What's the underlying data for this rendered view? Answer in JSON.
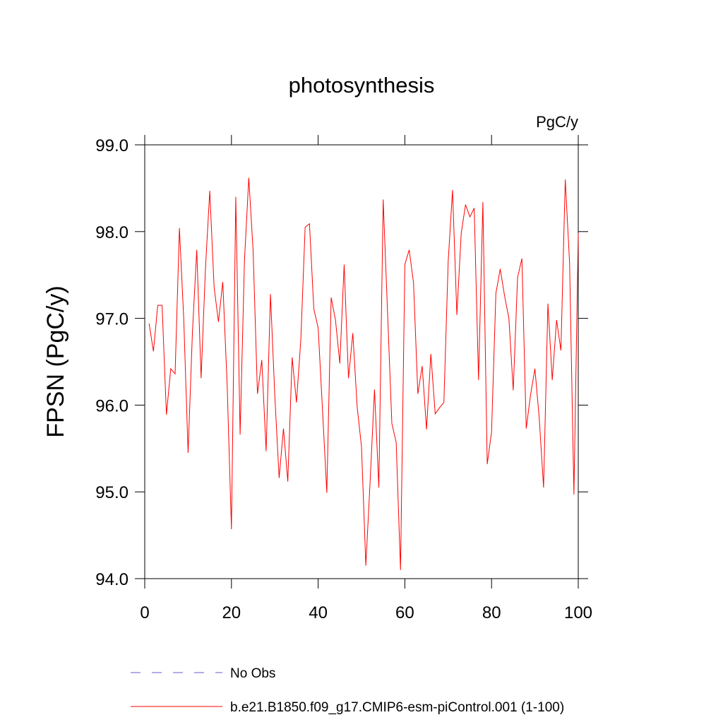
{
  "chart_data": {
    "type": "line",
    "title": "photosynthesis",
    "units": "PgC/y",
    "y_label": "FPSN  (PgC/y)",
    "x": [
      1,
      2,
      3,
      4,
      5,
      6,
      7,
      8,
      9,
      10,
      11,
      12,
      13,
      14,
      15,
      16,
      17,
      18,
      19,
      20,
      21,
      22,
      23,
      24,
      25,
      26,
      27,
      28,
      29,
      30,
      31,
      32,
      33,
      34,
      35,
      36,
      37,
      38,
      39,
      40,
      41,
      42,
      43,
      44,
      45,
      46,
      47,
      48,
      49,
      50,
      51,
      52,
      53,
      54,
      55,
      56,
      57,
      58,
      59,
      60,
      61,
      62,
      63,
      64,
      65,
      66,
      67,
      68,
      69,
      70,
      71,
      72,
      73,
      74,
      75,
      76,
      77,
      78,
      79,
      80,
      81,
      82,
      83,
      84,
      85,
      86,
      87,
      88,
      89,
      90,
      91,
      92,
      93,
      94,
      95,
      96,
      97,
      98,
      99,
      100
    ],
    "series": [
      {
        "name": "No Obs",
        "color": "#6a5acd",
        "dashed": true,
        "values": [
          null,
          null,
          null,
          null,
          null,
          null,
          null,
          null,
          null,
          null,
          null,
          null,
          null,
          null,
          null,
          null,
          null,
          null,
          null,
          null,
          null,
          null,
          null,
          null,
          null,
          null,
          null,
          null,
          null,
          null,
          null,
          null,
          null,
          null,
          null,
          null,
          null,
          null,
          null,
          null,
          null,
          null,
          null,
          null,
          null,
          null,
          null,
          null,
          null,
          null,
          null,
          null,
          null,
          null,
          null,
          null,
          null,
          null,
          null,
          null,
          null,
          null,
          null,
          null,
          null,
          null,
          null,
          null,
          null,
          null,
          null,
          null,
          null,
          null,
          null,
          null,
          null,
          null,
          null,
          null,
          null,
          null,
          null,
          null,
          null,
          null,
          null,
          null,
          null,
          null,
          null,
          null,
          null,
          null,
          null,
          null,
          null,
          null,
          null,
          null
        ]
      },
      {
        "name": "b.e21.B1850.f09_g17.CMIP6-esm-piControl.001 (1-100)",
        "color": "#ff0000",
        "dashed": false,
        "values": [
          96.94,
          96.62,
          97.15,
          97.15,
          95.89,
          96.42,
          96.36,
          98.04,
          96.99,
          95.45,
          96.84,
          97.79,
          96.31,
          97.57,
          98.47,
          97.36,
          96.96,
          97.42,
          96.25,
          94.57,
          98.4,
          95.66,
          97.66,
          98.62,
          97.78,
          96.13,
          96.52,
          95.47,
          97.28,
          96.11,
          95.16,
          95.73,
          95.12,
          96.55,
          96.03,
          96.75,
          98.05,
          98.09,
          97.11,
          96.89,
          95.95,
          94.99,
          97.24,
          96.98,
          96.48,
          97.62,
          96.31,
          96.83,
          95.98,
          95.52,
          94.15,
          95.13,
          96.18,
          95.05,
          98.37,
          97.08,
          95.79,
          95.57,
          94.1,
          97.62,
          97.79,
          97.41,
          96.13,
          96.45,
          95.72,
          96.59,
          95.9,
          95.97,
          96.03,
          97.66,
          98.48,
          97.04,
          97.98,
          98.31,
          98.17,
          98.27,
          96.29,
          98.34,
          95.32,
          95.69,
          97.29,
          97.57,
          97.26,
          97.0,
          96.17,
          97.47,
          97.69,
          95.73,
          96.12,
          96.42,
          95.85,
          95.05,
          97.17,
          96.29,
          96.98,
          96.63,
          98.6,
          97.64,
          94.97,
          97.98
        ]
      }
    ],
    "xlim": [
      0,
      100
    ],
    "xticks": [
      0,
      20,
      40,
      60,
      80,
      100
    ],
    "ylim": [
      94,
      99
    ],
    "yticks": [
      {
        "value": 94,
        "label": "94.0"
      },
      {
        "value": 95,
        "label": "95.0"
      },
      {
        "value": 96,
        "label": "96.0"
      },
      {
        "value": 97,
        "label": "97.0"
      },
      {
        "value": 98,
        "label": "98.0"
      },
      {
        "value": 99,
        "label": "99.0"
      }
    ],
    "grid": false
  }
}
